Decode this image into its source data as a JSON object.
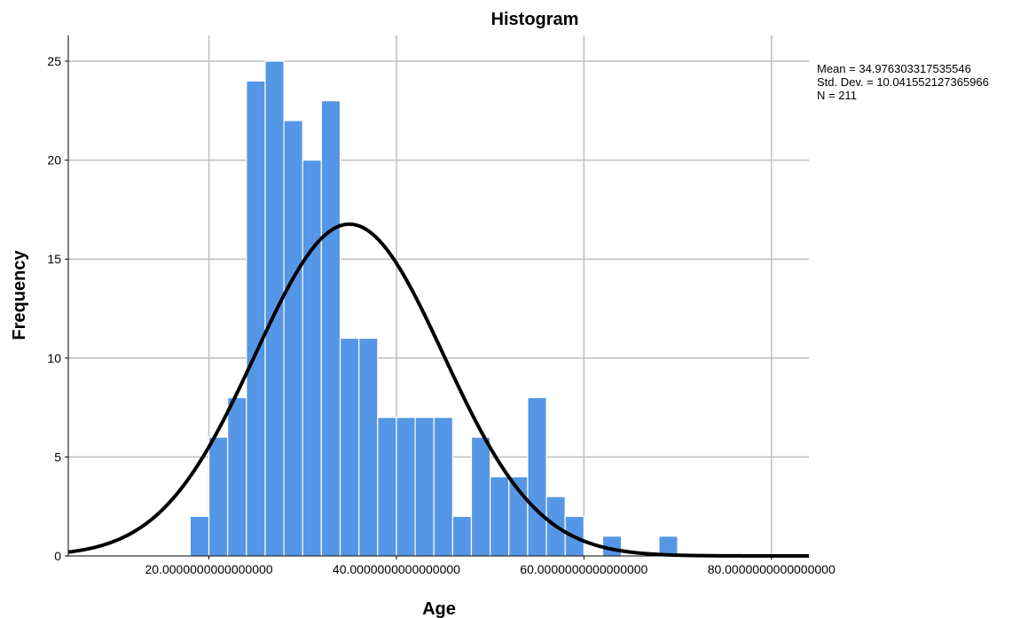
{
  "chart_data": {
    "type": "bar",
    "title": "Histogram",
    "xlabel": "Age",
    "ylabel": "Frequency",
    "xlim": [
      5,
      84
    ],
    "ylim": [
      0,
      26.3
    ],
    "x_ticks": [
      {
        "value": 20,
        "label": "20.0000000000000000"
      },
      {
        "value": 40,
        "label": "40.0000000000000000"
      },
      {
        "value": 60,
        "label": "60.0000000000000000"
      },
      {
        "value": 80,
        "label": "80.0000000000000000"
      }
    ],
    "y_ticks": [
      0,
      5,
      10,
      15,
      20,
      25
    ],
    "grid": true,
    "bin_width": 2,
    "bins": [
      {
        "start": 18,
        "count": 2
      },
      {
        "start": 20,
        "count": 6
      },
      {
        "start": 22,
        "count": 8
      },
      {
        "start": 24,
        "count": 24
      },
      {
        "start": 26,
        "count": 25
      },
      {
        "start": 28,
        "count": 22
      },
      {
        "start": 30,
        "count": 20
      },
      {
        "start": 32,
        "count": 23
      },
      {
        "start": 34,
        "count": 11
      },
      {
        "start": 36,
        "count": 11
      },
      {
        "start": 38,
        "count": 7
      },
      {
        "start": 40,
        "count": 7
      },
      {
        "start": 42,
        "count": 7
      },
      {
        "start": 44,
        "count": 7
      },
      {
        "start": 46,
        "count": 2
      },
      {
        "start": 48,
        "count": 6
      },
      {
        "start": 50,
        "count": 4
      },
      {
        "start": 52,
        "count": 4
      },
      {
        "start": 54,
        "count": 8
      },
      {
        "start": 56,
        "count": 3
      },
      {
        "start": 58,
        "count": 2
      },
      {
        "start": 60,
        "count": 0
      },
      {
        "start": 62,
        "count": 1
      },
      {
        "start": 64,
        "count": 0
      },
      {
        "start": 66,
        "count": 0
      },
      {
        "start": 68,
        "count": 1
      }
    ],
    "normal_curve": {
      "mean": 34.976303317535546,
      "sd": 10.041552127365966,
      "n": 211
    },
    "stats_text": [
      "Mean = 34.976303317535546",
      "Std. Dev. = 10.041552127365966",
      "N = 211"
    ],
    "colors": {
      "bar": "#5596e6",
      "bar_edge": "#ffffff",
      "curve": "#000000",
      "grid": "#bfbfbf",
      "axis": "#000000"
    }
  }
}
